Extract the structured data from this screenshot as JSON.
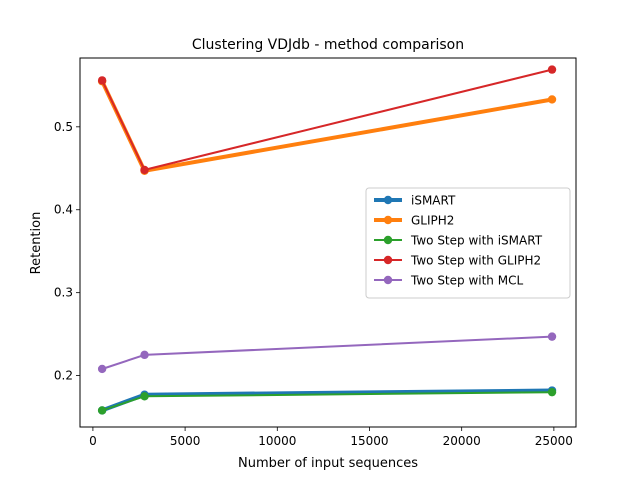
{
  "chart_data": {
    "type": "line",
    "title": "Clustering VDJdb - method comparison",
    "xlabel": "Number of input sequences",
    "ylabel": "Retention",
    "xlim": [
      -700,
      26200
    ],
    "ylim": [
      0.138,
      0.583
    ],
    "xticks": [
      0,
      5000,
      10000,
      15000,
      20000,
      25000
    ],
    "xtick_labels": [
      "0",
      "5000",
      "10000",
      "15000",
      "20000",
      "25000"
    ],
    "yticks": [
      0.2,
      0.3,
      0.4,
      0.5
    ],
    "ytick_labels": [
      "0.2",
      "0.3",
      "0.4",
      "0.5"
    ],
    "grid": false,
    "legend_position": "center-right",
    "series": [
      {
        "name": "iSMART",
        "color": "#1f77b4",
        "thick": true,
        "x": [
          500,
          2800,
          24900
        ],
        "y": [
          0.158,
          0.177,
          0.182
        ]
      },
      {
        "name": "GLIPH2",
        "color": "#ff7f0e",
        "thick": true,
        "x": [
          500,
          2800,
          24900
        ],
        "y": [
          0.555,
          0.447,
          0.533
        ]
      },
      {
        "name": "Two Step with iSMART",
        "color": "#2ca02c",
        "thick": false,
        "x": [
          500,
          2800,
          24900
        ],
        "y": [
          0.158,
          0.175,
          0.18
        ]
      },
      {
        "name": "Two Step with GLIPH2",
        "color": "#d62728",
        "thick": false,
        "x": [
          500,
          2800,
          24900
        ],
        "y": [
          0.556,
          0.448,
          0.569
        ]
      },
      {
        "name": "Two Step with MCL",
        "color": "#9467bd",
        "thick": false,
        "x": [
          500,
          2800,
          24900
        ],
        "y": [
          0.208,
          0.225,
          0.247
        ]
      }
    ]
  }
}
